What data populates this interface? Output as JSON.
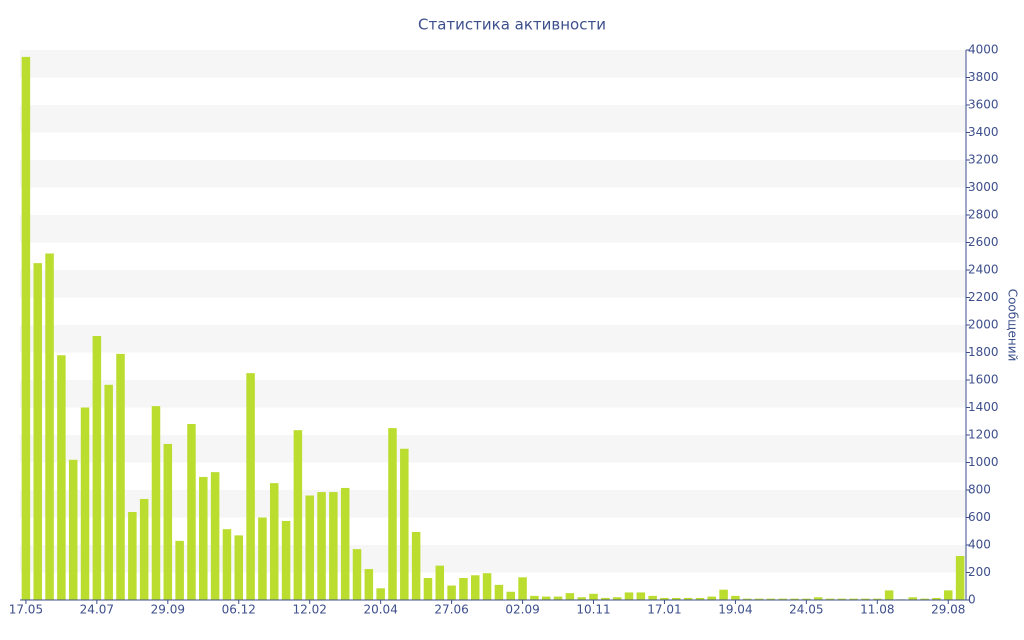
{
  "chart_data": {
    "type": "bar",
    "title": "Статистика активности",
    "y_label": "Сообщений",
    "categories": [
      "17.05",
      null,
      null,
      null,
      null,
      null,
      "24.07",
      null,
      null,
      null,
      null,
      null,
      "29.09",
      null,
      null,
      null,
      null,
      null,
      "06.12",
      null,
      null,
      null,
      null,
      null,
      "12.02",
      null,
      null,
      null,
      null,
      null,
      "20.04",
      null,
      null,
      null,
      null,
      null,
      "27.06",
      null,
      null,
      null,
      null,
      null,
      "02.09",
      null,
      null,
      null,
      null,
      null,
      "10.11",
      null,
      null,
      null,
      null,
      null,
      "17.01",
      null,
      null,
      null,
      null,
      null,
      "19.04",
      null,
      null,
      null,
      null,
      null,
      "24.05",
      null,
      null,
      null,
      null,
      null,
      "11.08",
      null,
      null,
      null,
      null,
      null,
      "29.08",
      null
    ],
    "values": [
      3950,
      2450,
      2520,
      1780,
      1020,
      1400,
      1920,
      1565,
      1790,
      640,
      735,
      1410,
      1135,
      430,
      1280,
      895,
      930,
      515,
      470,
      1650,
      600,
      850,
      575,
      1235,
      760,
      785,
      785,
      815,
      370,
      225,
      85,
      1250,
      1100,
      495,
      160,
      250,
      105,
      160,
      180,
      195,
      110,
      60,
      165,
      30,
      25,
      25,
      50,
      20,
      45,
      15,
      20,
      55,
      55,
      30,
      15,
      15,
      15,
      15,
      25,
      75,
      30,
      10,
      10,
      10,
      10,
      10,
      10,
      20,
      10,
      10,
      10,
      10,
      10,
      70,
      5,
      20,
      10,
      15,
      70,
      320
    ],
    "color": "#bbdd30",
    "ylim": [
      0,
      4000
    ],
    "yticks": [
      0,
      200,
      400,
      600,
      800,
      1000,
      1200,
      1400,
      1600,
      1800,
      2000,
      2200,
      2400,
      2600,
      2800,
      3000,
      3200,
      3400,
      3600,
      3800,
      4000
    ],
    "grid": true
  }
}
